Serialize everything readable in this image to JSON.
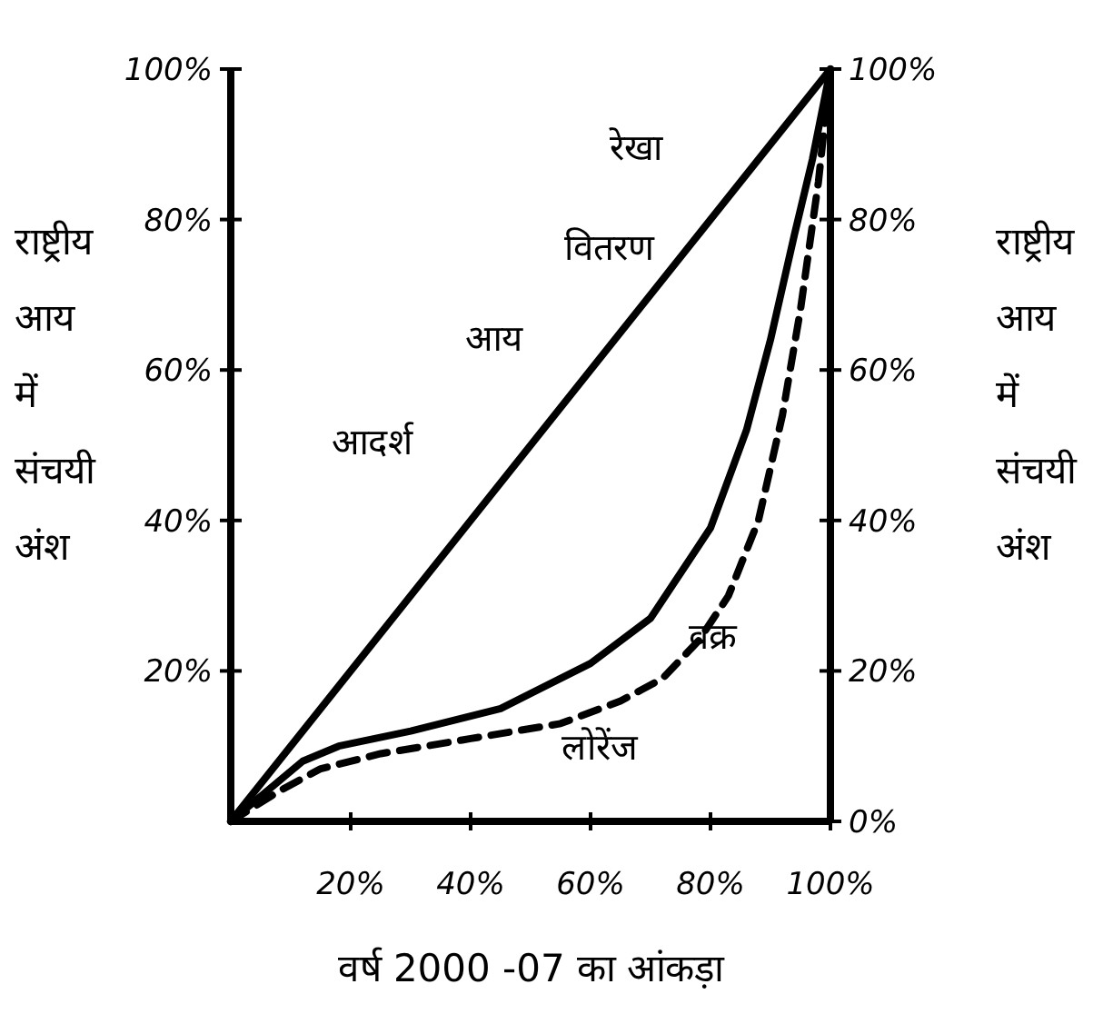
{
  "chart_data": {
    "type": "line",
    "xlabel": "वर्ष 2000 -07 का आंकड़ा",
    "ylabel": "राष्ट्रीय आय में संचयी अंश",
    "y2label": "राष्ट्रीय आय में संचयी अंश",
    "series": [
      {
        "color": "#000000",
        "line_style": "solid",
        "x": [
          0,
          100
        ],
        "values": [
          0,
          100
        ]
      },
      {
        "color": "#000000",
        "line_style": "solid",
        "x": [
          0,
          12,
          18,
          30,
          45,
          60,
          70,
          80,
          86,
          90,
          94,
          97,
          100
        ],
        "values": [
          0,
          8,
          10,
          12,
          15,
          21,
          27,
          39,
          52,
          64,
          78,
          88,
          100
        ]
      },
      {
        "color": "#000000",
        "line_style": "dashed",
        "x": [
          0,
          8,
          15,
          25,
          40,
          55,
          65,
          72,
          78,
          83,
          88,
          92,
          95,
          98,
          100
        ],
        "values": [
          0,
          4,
          7,
          9,
          11,
          13,
          16,
          19,
          24,
          30,
          40,
          54,
          68,
          85,
          100
        ]
      }
    ],
    "annotations": [
      "आदर्श",
      "आय",
      "वितरण",
      "रेखा",
      "वक्र",
      "लोरेंज"
    ],
    "xlim": [
      0,
      100
    ],
    "ylim": [
      0,
      100
    ],
    "y2lim": [
      0,
      100
    ],
    "xticks": [
      {
        "value": 20,
        "label": "20%"
      },
      {
        "value": 40,
        "label": "40%"
      },
      {
        "value": 60,
        "label": "60%"
      },
      {
        "value": 80,
        "label": "80%"
      },
      {
        "value": 100,
        "label": "100%"
      }
    ],
    "yticks": [
      {
        "value": 20,
        "label": "20%"
      },
      {
        "value": 40,
        "label": "40%"
      },
      {
        "value": 60,
        "label": "60%"
      },
      {
        "value": 80,
        "label": "80%"
      },
      {
        "value": 100,
        "label": "100%"
      }
    ],
    "y2ticks": [
      {
        "value": 0,
        "label": "0%"
      },
      {
        "value": 20,
        "label": "20%"
      },
      {
        "value": 40,
        "label": "40%"
      },
      {
        "value": 60,
        "label": "60%"
      },
      {
        "value": 80,
        "label": "80%"
      },
      {
        "value": 100,
        "label": "100%"
      }
    ],
    "grid": false,
    "marker": "none"
  }
}
